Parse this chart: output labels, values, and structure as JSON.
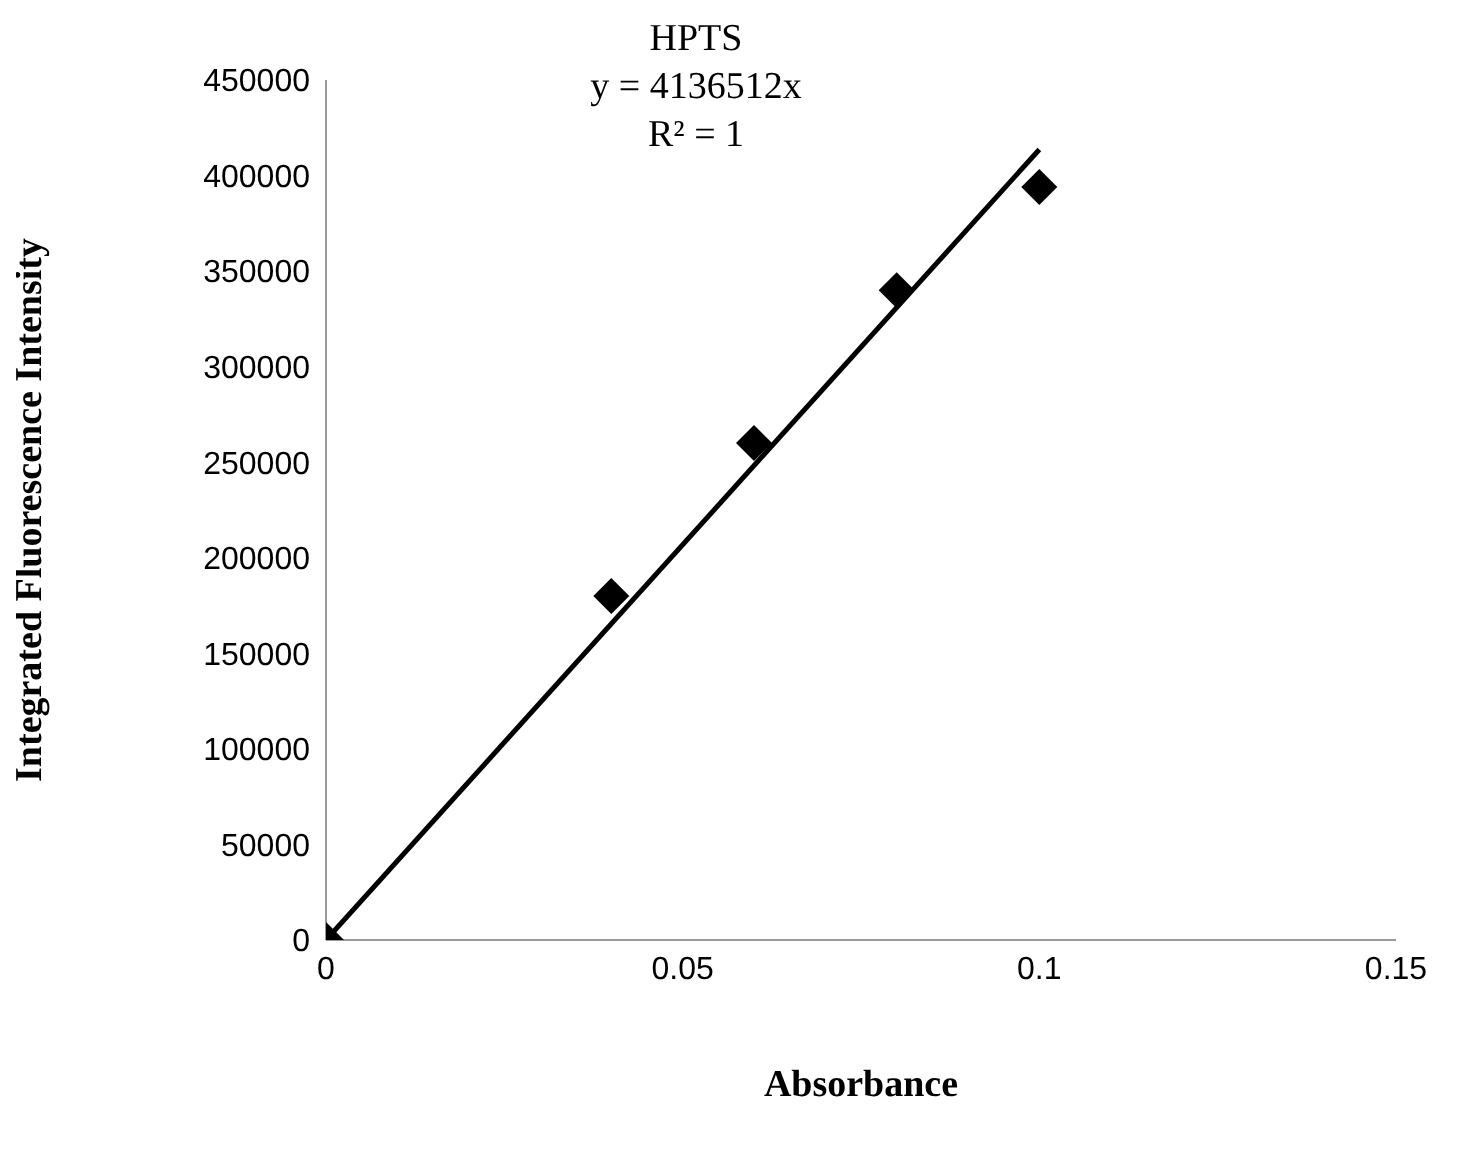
{
  "chart_data": {
    "type": "scatter",
    "xlabel": "Absorbance",
    "ylabel": "Integrated Fluorescence Intensity",
    "annotations": [
      "HPTS",
      "y = 4136512x",
      "R² = 1"
    ],
    "x": [
      0,
      0.04,
      0.06,
      0.08,
      0.1
    ],
    "series": [
      {
        "color": "#000000",
        "values": [
          0,
          180000,
          260000,
          340000,
          394000
        ],
        "marker": "diamond"
      },
      {
        "type": "line",
        "color": "#000000",
        "x": [
          0,
          0.1
        ],
        "values": [
          0,
          413650
        ],
        "line_style": "solid",
        "marker": "none"
      }
    ],
    "xlim": [
      0,
      0.15
    ],
    "xticks": [
      0,
      0.05,
      0.1,
      0.15
    ],
    "ylim": [
      0,
      450000
    ],
    "yticks": [
      0,
      50000,
      100000,
      150000,
      200000,
      250000,
      300000,
      350000,
      400000,
      450000
    ],
    "grid": false,
    "legend": false
  }
}
